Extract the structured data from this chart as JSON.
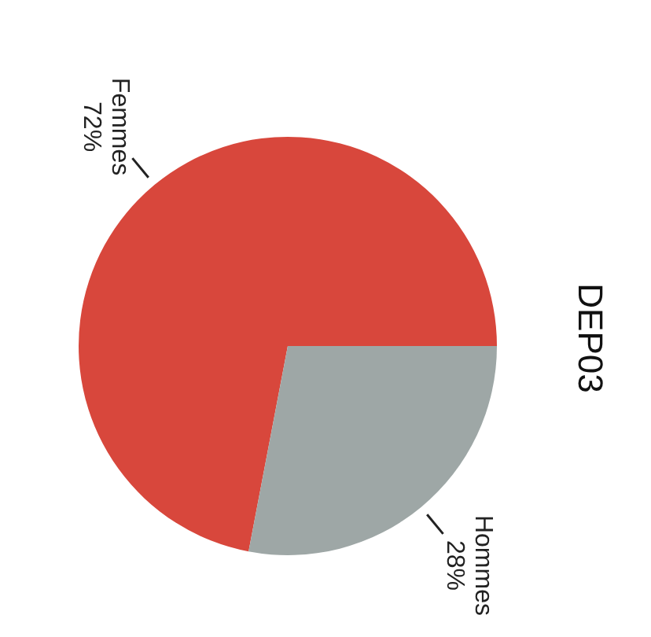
{
  "chart_data": {
    "type": "pie",
    "title": "DEP03",
    "categories": [
      "Femmes",
      "Hommes"
    ],
    "values": [
      72,
      28
    ],
    "colors": [
      "#d8473c",
      "#9ea7a6"
    ],
    "value_labels": [
      "72%",
      "28%"
    ]
  }
}
